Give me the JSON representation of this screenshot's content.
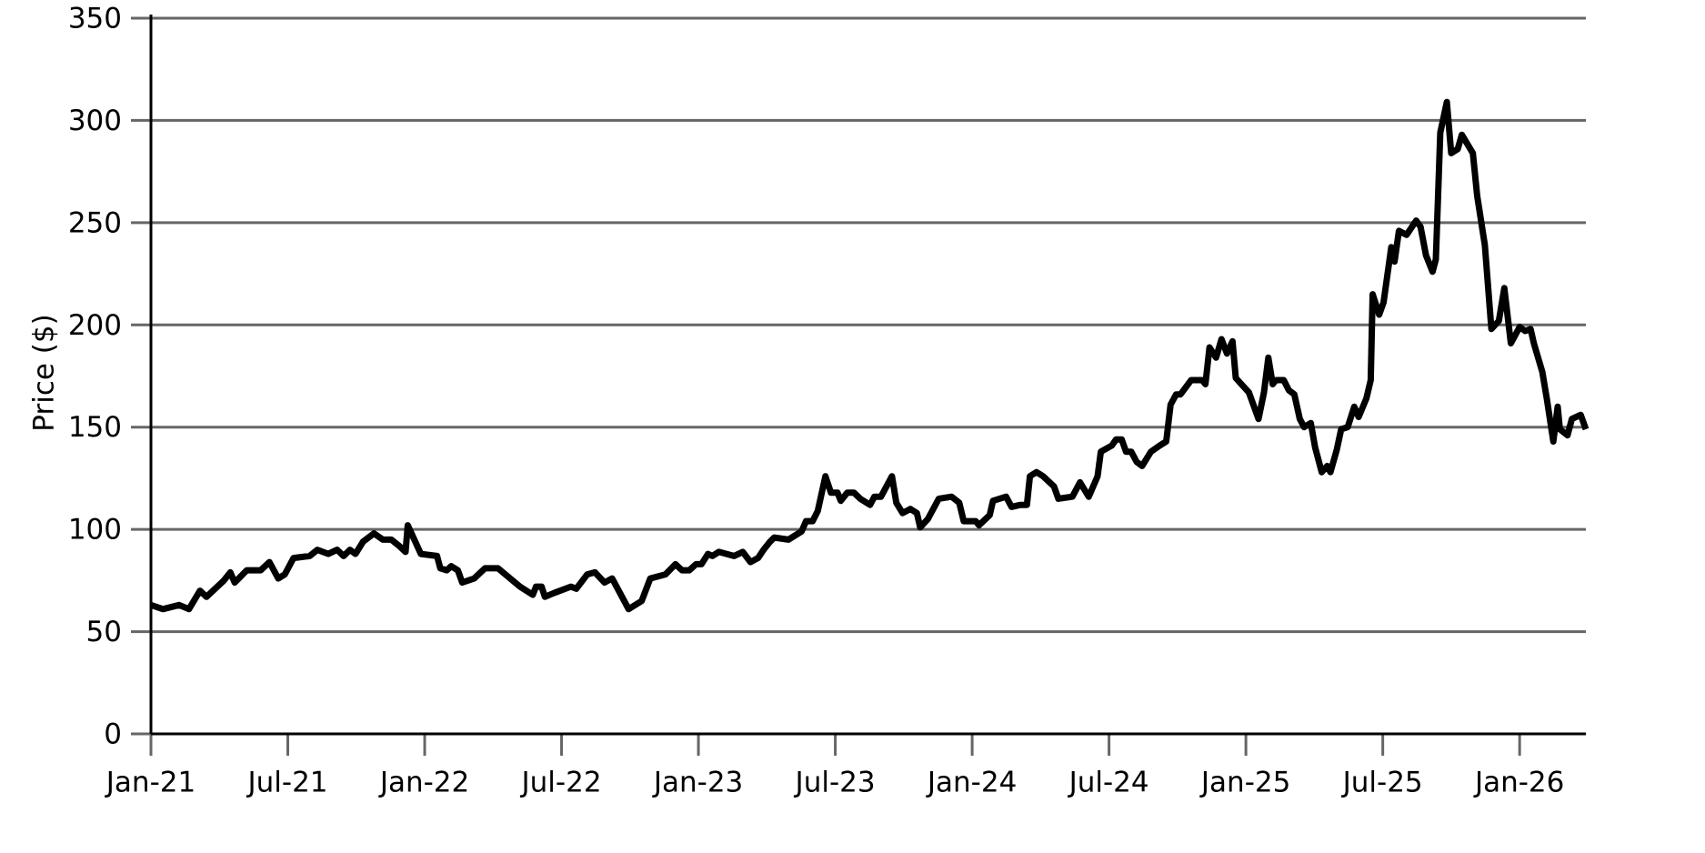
{
  "chart_data": {
    "type": "line",
    "ylabel": "Price ($)",
    "color": "#000000",
    "grid": true,
    "xlim": [
      2021,
      2026.242
    ],
    "ylim": [
      0,
      350
    ],
    "yticks": [
      0,
      50,
      100,
      150,
      200,
      250,
      300,
      350
    ],
    "xticks": [
      {
        "value": 2021,
        "label": "Jan-21"
      },
      {
        "value": 2021.5,
        "label": "Jul-21"
      },
      {
        "value": 2022,
        "label": "Jan-22"
      },
      {
        "value": 2022.5,
        "label": "Jul-22"
      },
      {
        "value": 2023,
        "label": "Jan-23"
      },
      {
        "value": 2023.5,
        "label": "Jul-23"
      },
      {
        "value": 2024,
        "label": "Jan-24"
      },
      {
        "value": 2024.5,
        "label": "Jul-24"
      },
      {
        "value": 2025,
        "label": "Jan-25"
      },
      {
        "value": 2025.5,
        "label": "Jul-25"
      },
      {
        "value": 2026,
        "label": "Jan-26"
      }
    ],
    "x": [
      2021.0,
      2021.044,
      2021.103,
      2021.139,
      2021.179,
      2021.203,
      2021.266,
      2021.29,
      2021.306,
      2021.35,
      2021.401,
      2021.433,
      2021.465,
      2021.489,
      2021.521,
      2021.58,
      2021.608,
      2021.648,
      2021.68,
      2021.704,
      2021.727,
      2021.747,
      2021.775,
      2021.815,
      2021.847,
      2021.878,
      2021.906,
      2021.93,
      2021.938,
      2021.986,
      2022.045,
      2022.057,
      2022.081,
      2022.097,
      2022.121,
      2022.137,
      2022.181,
      2022.22,
      2022.268,
      2022.348,
      2022.395,
      2022.407,
      2022.427,
      2022.439,
      2022.475,
      2022.514,
      2022.534,
      2022.554,
      2022.594,
      2022.622,
      2022.657,
      2022.685,
      2022.745,
      2022.793,
      2022.824,
      2022.88,
      2022.916,
      2022.94,
      2022.967,
      2022.991,
      2023.011,
      2023.035,
      2023.051,
      2023.075,
      2023.13,
      2023.162,
      2023.19,
      2023.218,
      2023.238,
      2023.262,
      2023.277,
      2023.329,
      2023.377,
      2023.393,
      2023.417,
      2023.436,
      2023.464,
      2023.484,
      2023.508,
      2023.52,
      2023.544,
      2023.568,
      2023.591,
      2023.627,
      2023.643,
      2023.667,
      2023.707,
      2023.723,
      2023.746,
      2023.774,
      2023.798,
      2023.81,
      2023.838,
      2023.878,
      2023.925,
      2023.953,
      2023.969,
      2024.013,
      2024.025,
      2024.064,
      2024.076,
      2024.124,
      2024.144,
      2024.176,
      2024.2,
      2024.211,
      2024.235,
      2024.259,
      2024.299,
      2024.315,
      2024.366,
      2024.394,
      2024.426,
      2024.458,
      2024.47,
      2024.51,
      2024.526,
      2024.546,
      2024.562,
      2024.581,
      2024.601,
      2024.621,
      2024.653,
      2024.685,
      2024.709,
      2024.725,
      2024.745,
      2024.761,
      2024.8,
      2024.84,
      2024.852,
      2024.867,
      2024.891,
      2024.911,
      2024.931,
      2024.951,
      2024.963,
      2025.011,
      2025.046,
      2025.066,
      2025.082,
      2025.098,
      2025.11,
      2025.138,
      2025.157,
      2025.177,
      2025.197,
      2025.213,
      2025.237,
      2025.253,
      2025.277,
      2025.297,
      2025.309,
      2025.332,
      2025.348,
      2025.372,
      2025.396,
      2025.412,
      2025.44,
      2025.456,
      2025.463,
      2025.487,
      2025.503,
      2025.531,
      2025.543,
      2025.559,
      2025.587,
      2025.622,
      2025.638,
      2025.658,
      2025.682,
      2025.694,
      2025.71,
      2025.734,
      2025.75,
      2025.774,
      2025.789,
      2025.829,
      2025.845,
      2025.873,
      2025.897,
      2025.924,
      2025.944,
      2025.968,
      2025.98,
      2026.0,
      2026.02,
      2026.04,
      2026.052,
      2026.083,
      2026.099,
      2026.123,
      2026.139,
      2026.147,
      2026.175,
      2026.191,
      2026.223,
      2026.242
    ],
    "values": [
      63,
      61,
      63,
      61,
      70,
      67,
      75,
      79,
      74,
      80,
      80,
      84,
      76,
      78,
      86,
      87,
      90,
      88,
      90,
      87,
      90,
      88,
      94,
      98,
      95,
      95,
      92,
      89,
      102,
      88,
      87,
      81,
      80,
      82,
      80,
      74,
      76,
      81,
      81,
      72,
      68,
      72,
      72,
      67,
      69,
      71,
      72,
      71,
      78,
      79,
      74,
      76,
      61,
      65,
      76,
      78,
      83,
      80,
      80,
      83,
      83,
      88,
      87,
      89,
      87,
      89,
      84,
      86,
      90,
      94,
      96,
      95,
      99,
      104,
      104,
      109,
      126,
      118,
      118,
      114,
      118,
      118,
      115,
      112,
      116,
      116,
      126,
      113,
      108,
      110,
      108,
      101,
      105,
      115,
      116,
      113,
      104,
      104,
      102,
      107,
      114,
      116,
      111,
      112,
      112,
      126,
      128,
      126,
      121,
      115,
      116,
      123,
      116,
      126,
      138,
      141,
      144,
      144,
      138,
      138,
      133,
      131,
      138,
      141,
      143,
      161,
      166,
      166,
      173,
      173,
      171,
      189,
      184,
      193,
      186,
      192,
      174,
      167,
      154,
      167,
      184,
      171,
      173,
      173,
      168,
      166,
      154,
      150,
      152,
      140,
      128,
      131,
      128,
      139,
      149,
      150,
      160,
      155,
      164,
      173,
      215,
      205,
      211,
      238,
      231,
      246,
      244,
      251,
      248,
      234,
      226,
      232,
      294,
      309,
      284,
      286,
      293,
      284,
      263,
      239,
      198,
      202,
      218,
      191,
      194,
      199,
      197,
      198,
      191,
      177,
      164,
      143,
      160,
      149,
      146,
      154,
      156,
      149
    ]
  }
}
